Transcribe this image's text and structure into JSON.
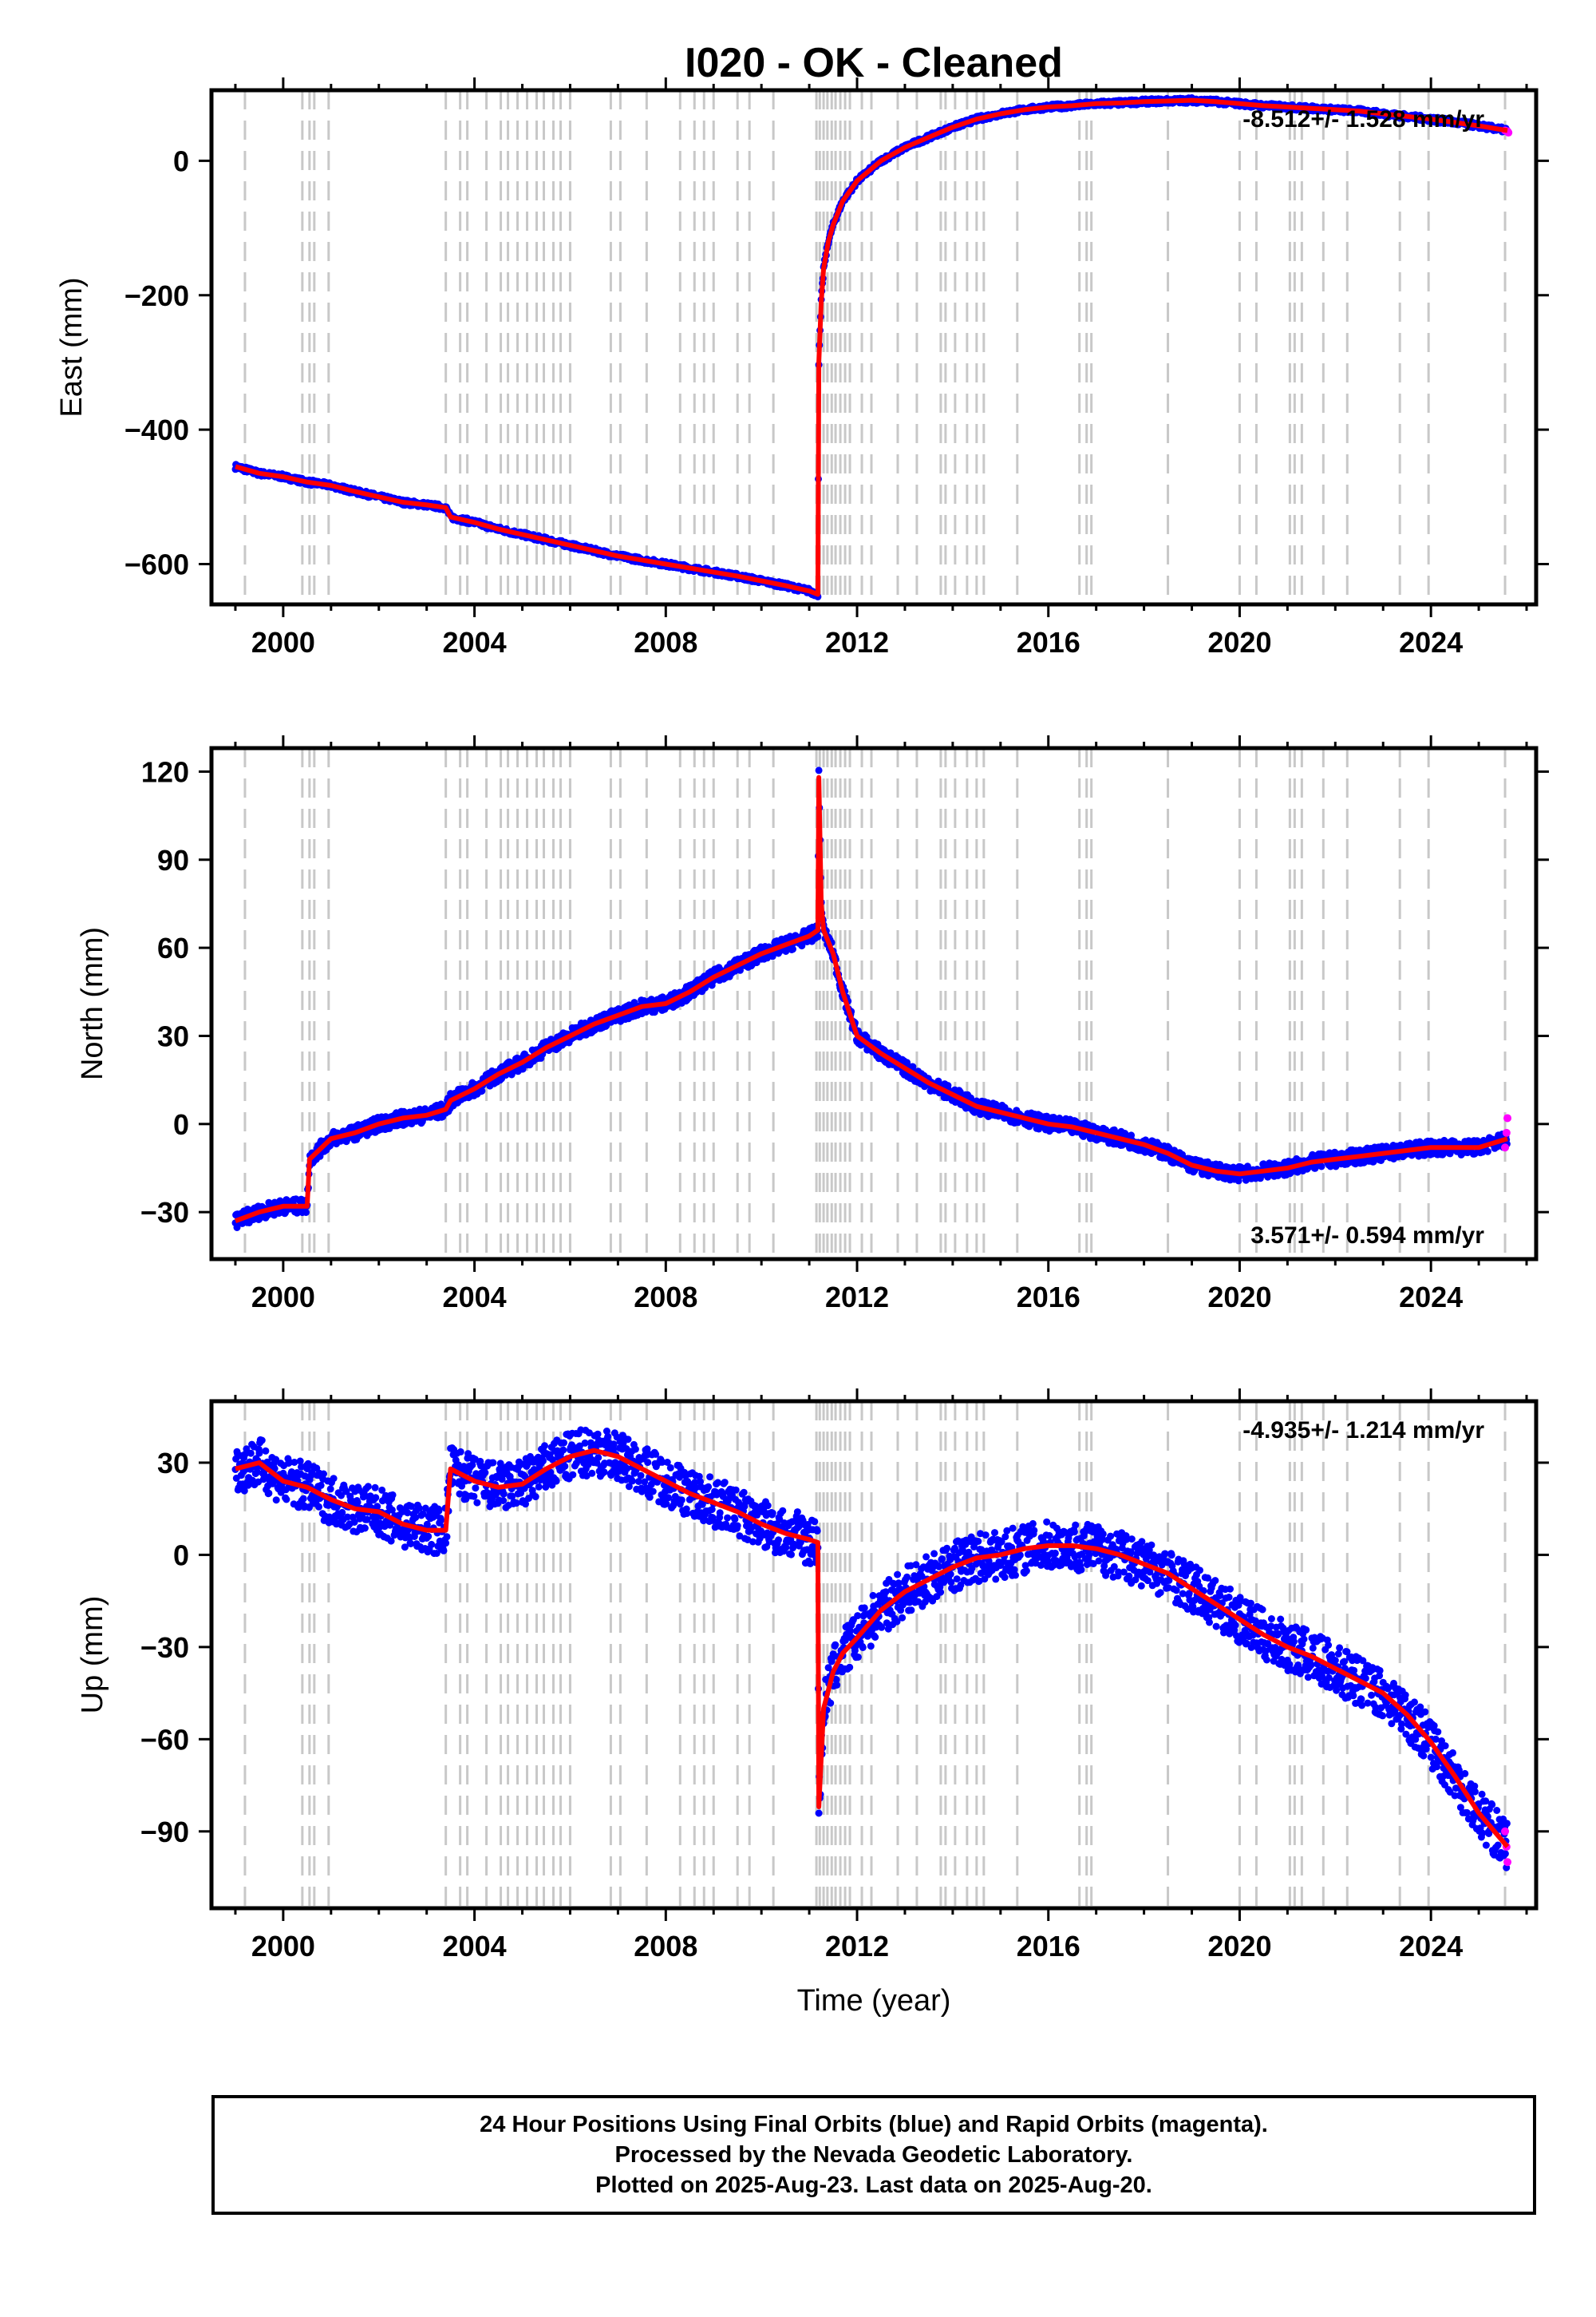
{
  "chart_data": {
    "title": "I020  - OK - Cleaned",
    "type": "scatter",
    "xlabel": "Time (year)",
    "xlim": [
      1998.5,
      2026.2
    ],
    "x_ticks": [
      2000,
      2004,
      2008,
      2012,
      2016,
      2020,
      2024
    ],
    "x_tick_labels": [
      "2000",
      "2004",
      "2008",
      "2012",
      "2016",
      "2020",
      "2024"
    ],
    "series_colors": {
      "final_orbits": "#0000ff",
      "rapid_orbits": "#ff00ff",
      "model": "#ff0000",
      "event_lines": "#c8c8c8"
    },
    "event_lines": [
      1999.2,
      2000.4,
      2000.55,
      2000.65,
      2000.95,
      2003.4,
      2003.7,
      2003.85,
      2004.25,
      2004.55,
      2004.7,
      2004.9,
      2005.1,
      2005.3,
      2005.45,
      2005.65,
      2005.8,
      2006.0,
      2006.85,
      2007.05,
      2007.6,
      2008.3,
      2008.6,
      2008.8,
      2009.0,
      2009.5,
      2009.75,
      2010.25,
      2011.15,
      2011.22,
      2011.3,
      2011.38,
      2011.47,
      2011.55,
      2011.65,
      2011.75,
      2011.85,
      2012.1,
      2012.3,
      2012.85,
      2013.25,
      2013.75,
      2013.85,
      2014.05,
      2014.3,
      2014.5,
      2014.65,
      2015.35,
      2016.65,
      2016.8,
      2016.9,
      2018.5,
      2020.0,
      2020.35,
      2021.05,
      2021.15,
      2021.3,
      2021.75,
      2022.25,
      2023.35,
      2023.95,
      2025.55
    ],
    "panels": [
      {
        "ylabel": "East (mm)",
        "ylim": [
          -660,
          105
        ],
        "y_ticks": [
          -600,
          -400,
          -200,
          0
        ],
        "y_tick_labels": [
          "−600",
          "−400",
          "−200",
          "0"
        ],
        "rate_label": "-8.512+/- 1.528 mm/yr",
        "rate_position": "top-right",
        "data": [
          [
            1999.0,
            -455
          ],
          [
            1999.5,
            -465
          ],
          [
            2000.0,
            -470
          ],
          [
            2000.5,
            -478
          ],
          [
            2001.0,
            -483
          ],
          [
            2001.5,
            -492
          ],
          [
            2002.0,
            -500
          ],
          [
            2002.5,
            -508
          ],
          [
            2003.0,
            -512
          ],
          [
            2003.4,
            -516
          ],
          [
            2003.5,
            -530
          ],
          [
            2004.0,
            -538
          ],
          [
            2004.5,
            -548
          ],
          [
            2005.0,
            -556
          ],
          [
            2005.5,
            -564
          ],
          [
            2006.0,
            -572
          ],
          [
            2006.5,
            -580
          ],
          [
            2007.0,
            -588
          ],
          [
            2007.5,
            -594
          ],
          [
            2008.0,
            -600
          ],
          [
            2008.5,
            -606
          ],
          [
            2009.0,
            -612
          ],
          [
            2009.5,
            -618
          ],
          [
            2010.0,
            -625
          ],
          [
            2010.5,
            -632
          ],
          [
            2011.0,
            -640
          ],
          [
            2011.18,
            -645
          ],
          [
            2011.2,
            -300
          ],
          [
            2011.25,
            -210
          ],
          [
            2011.3,
            -160
          ],
          [
            2011.4,
            -120
          ],
          [
            2011.5,
            -95
          ],
          [
            2011.7,
            -60
          ],
          [
            2012.0,
            -30
          ],
          [
            2012.5,
            0
          ],
          [
            2013.0,
            20
          ],
          [
            2013.5,
            35
          ],
          [
            2014.0,
            50
          ],
          [
            2014.5,
            62
          ],
          [
            2015.0,
            70
          ],
          [
            2015.5,
            76
          ],
          [
            2016.0,
            80
          ],
          [
            2016.5,
            82
          ],
          [
            2017.0,
            85
          ],
          [
            2017.5,
            86
          ],
          [
            2018.0,
            88
          ],
          [
            2018.5,
            89
          ],
          [
            2019.0,
            90
          ],
          [
            2019.5,
            88
          ],
          [
            2020.0,
            85
          ],
          [
            2020.5,
            82
          ],
          [
            2021.0,
            80
          ],
          [
            2021.5,
            78
          ],
          [
            2022.0,
            76
          ],
          [
            2022.5,
            74
          ],
          [
            2023.0,
            70
          ],
          [
            2023.5,
            66
          ],
          [
            2024.0,
            62
          ],
          [
            2024.5,
            57
          ],
          [
            2025.0,
            52
          ],
          [
            2025.6,
            45
          ]
        ],
        "rapid_data": [
          [
            2025.55,
            45
          ],
          [
            2025.6,
            44
          ],
          [
            2025.62,
            42
          ]
        ]
      },
      {
        "ylabel": "North (mm)",
        "ylim": [
          -46,
          128
        ],
        "y_ticks": [
          -30,
          0,
          30,
          60,
          90,
          120
        ],
        "y_tick_labels": [
          "−30",
          "0",
          "30",
          "60",
          "90",
          "120"
        ],
        "rate_label": "3.571+/- 0.594 mm/yr",
        "rate_position": "bottom-right",
        "data": [
          [
            1999.0,
            -33
          ],
          [
            1999.5,
            -30
          ],
          [
            2000.0,
            -28
          ],
          [
            2000.5,
            -28
          ],
          [
            2000.55,
            -12
          ],
          [
            2001.0,
            -5
          ],
          [
            2001.5,
            -3
          ],
          [
            2002.0,
            0
          ],
          [
            2002.5,
            2
          ],
          [
            2003.0,
            3
          ],
          [
            2003.4,
            5
          ],
          [
            2003.5,
            8
          ],
          [
            2004.0,
            12
          ],
          [
            2004.5,
            17
          ],
          [
            2005.0,
            21
          ],
          [
            2005.5,
            26
          ],
          [
            2006.0,
            30
          ],
          [
            2006.5,
            34
          ],
          [
            2007.0,
            37
          ],
          [
            2007.5,
            40
          ],
          [
            2008.0,
            41
          ],
          [
            2008.5,
            45
          ],
          [
            2009.0,
            50
          ],
          [
            2009.5,
            54
          ],
          [
            2010.0,
            58
          ],
          [
            2010.5,
            61
          ],
          [
            2011.0,
            64
          ],
          [
            2011.18,
            66
          ],
          [
            2011.2,
            118
          ],
          [
            2011.25,
            75
          ],
          [
            2011.3,
            66
          ],
          [
            2011.5,
            58
          ],
          [
            2011.7,
            45
          ],
          [
            2012.0,
            30
          ],
          [
            2012.5,
            24
          ],
          [
            2013.0,
            19
          ],
          [
            2013.5,
            14
          ],
          [
            2014.0,
            10
          ],
          [
            2014.5,
            6
          ],
          [
            2015.0,
            4
          ],
          [
            2015.5,
            2
          ],
          [
            2016.0,
            0
          ],
          [
            2016.5,
            -1
          ],
          [
            2017.0,
            -3
          ],
          [
            2017.5,
            -5
          ],
          [
            2018.0,
            -7
          ],
          [
            2018.5,
            -10
          ],
          [
            2019.0,
            -14
          ],
          [
            2019.5,
            -16
          ],
          [
            2020.0,
            -17
          ],
          [
            2020.5,
            -16
          ],
          [
            2021.0,
            -15
          ],
          [
            2021.5,
            -13
          ],
          [
            2022.0,
            -12
          ],
          [
            2022.5,
            -11
          ],
          [
            2023.0,
            -10
          ],
          [
            2023.5,
            -9
          ],
          [
            2024.0,
            -8
          ],
          [
            2024.5,
            -8
          ],
          [
            2025.0,
            -8
          ],
          [
            2025.6,
            -5
          ]
        ],
        "rapid_data": [
          [
            2025.55,
            -8
          ],
          [
            2025.58,
            -3
          ],
          [
            2025.6,
            2
          ]
        ]
      },
      {
        "ylabel": "Up (mm)",
        "ylim": [
          -115,
          50
        ],
        "y_ticks": [
          -90,
          -60,
          -30,
          0,
          30
        ],
        "y_tick_labels": [
          "−90",
          "−60",
          "−30",
          "0",
          "30"
        ],
        "rate_label": "-4.935+/- 1.214 mm/yr",
        "rate_position": "top-right",
        "data": [
          [
            1999.0,
            28
          ],
          [
            1999.5,
            30
          ],
          [
            2000.0,
            24
          ],
          [
            2000.5,
            22
          ],
          [
            2001.0,
            18
          ],
          [
            2001.5,
            15
          ],
          [
            2002.0,
            14
          ],
          [
            2002.5,
            10
          ],
          [
            2003.0,
            8
          ],
          [
            2003.4,
            8
          ],
          [
            2003.5,
            28
          ],
          [
            2004.0,
            24
          ],
          [
            2004.5,
            22
          ],
          [
            2005.0,
            23
          ],
          [
            2005.5,
            28
          ],
          [
            2006.0,
            32
          ],
          [
            2006.5,
            34
          ],
          [
            2007.0,
            32
          ],
          [
            2007.5,
            28
          ],
          [
            2008.0,
            24
          ],
          [
            2008.5,
            20
          ],
          [
            2009.0,
            17
          ],
          [
            2009.5,
            14
          ],
          [
            2010.0,
            10
          ],
          [
            2010.5,
            7
          ],
          [
            2011.0,
            5
          ],
          [
            2011.18,
            4
          ],
          [
            2011.2,
            -82
          ],
          [
            2011.3,
            -50
          ],
          [
            2011.5,
            -38
          ],
          [
            2011.7,
            -32
          ],
          [
            2012.0,
            -27
          ],
          [
            2012.5,
            -18
          ],
          [
            2013.0,
            -12
          ],
          [
            2013.5,
            -8
          ],
          [
            2014.0,
            -4
          ],
          [
            2014.5,
            -1
          ],
          [
            2015.0,
            0
          ],
          [
            2015.5,
            2
          ],
          [
            2016.0,
            3
          ],
          [
            2016.5,
            3
          ],
          [
            2017.0,
            2
          ],
          [
            2017.5,
            0
          ],
          [
            2018.0,
            -3
          ],
          [
            2018.5,
            -6
          ],
          [
            2019.0,
            -11
          ],
          [
            2019.5,
            -16
          ],
          [
            2020.0,
            -21
          ],
          [
            2020.5,
            -26
          ],
          [
            2021.0,
            -30
          ],
          [
            2021.5,
            -33
          ],
          [
            2022.0,
            -37
          ],
          [
            2022.5,
            -41
          ],
          [
            2023.0,
            -45
          ],
          [
            2023.5,
            -52
          ],
          [
            2024.0,
            -61
          ],
          [
            2024.5,
            -72
          ],
          [
            2025.0,
            -84
          ],
          [
            2025.6,
            -95
          ]
        ],
        "rapid_data": [
          [
            2025.55,
            -90
          ],
          [
            2025.58,
            -95
          ],
          [
            2025.6,
            -100
          ]
        ]
      }
    ]
  },
  "footer": {
    "line1": "24 Hour Positions Using Final Orbits (blue) and Rapid Orbits (magenta).",
    "line2": "Processed by the Nevada Geodetic Laboratory.",
    "line3": "Plotted on 2025-Aug-23. Last data on 2025-Aug-20."
  }
}
